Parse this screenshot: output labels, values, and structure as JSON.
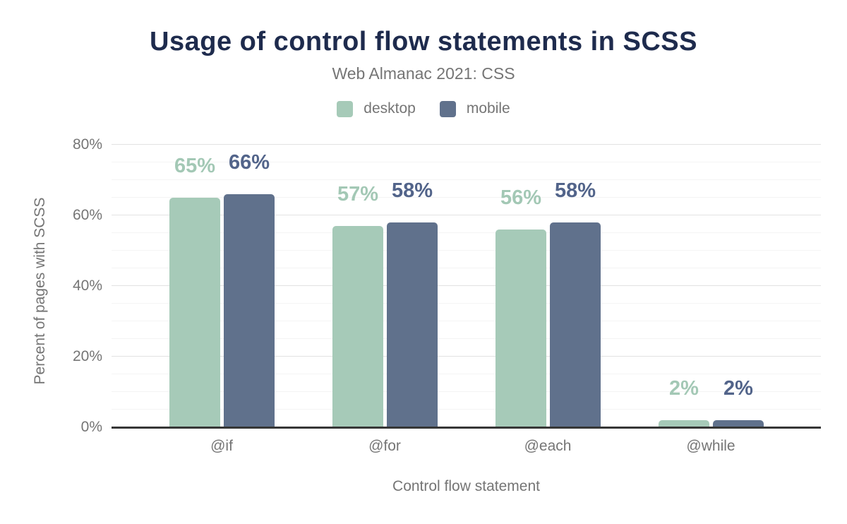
{
  "chart_data": {
    "type": "bar",
    "title": "Usage of control flow statements in SCSS",
    "subtitle": "Web Almanac 2021: CSS",
    "xlabel": "Control flow statement",
    "ylabel": "Percent of pages with SCSS",
    "categories": [
      "@if",
      "@for",
      "@each",
      "@while"
    ],
    "series": [
      {
        "name": "desktop",
        "color": "#a6cab8",
        "label_color": "#a3c8b5",
        "values": [
          65,
          57,
          56,
          2
        ],
        "labels": [
          "65%",
          "57%",
          "56%",
          "2%"
        ]
      },
      {
        "name": "mobile",
        "color": "#60718c",
        "label_color": "#52648a",
        "values": [
          66,
          58,
          58,
          2
        ],
        "labels": [
          "66%",
          "58%",
          "58%",
          "2%"
        ]
      }
    ],
    "ylim": [
      0,
      80
    ],
    "yticks": [
      {
        "value": 0,
        "label": "0%"
      },
      {
        "value": 20,
        "label": "20%"
      },
      {
        "value": 40,
        "label": "40%"
      },
      {
        "value": 60,
        "label": "60%"
      },
      {
        "value": 80,
        "label": "80%"
      }
    ],
    "grid": "on",
    "grid_minor_step": 5,
    "grid_major_step": 20,
    "legend_position": "top"
  },
  "colors": {
    "title": "#1e2b4d",
    "text_gray": "#757575",
    "axis_line": "#363636",
    "grid_major": "#e2e2e2",
    "grid_minor": "#f4f4f4",
    "background": "#ffffff"
  }
}
